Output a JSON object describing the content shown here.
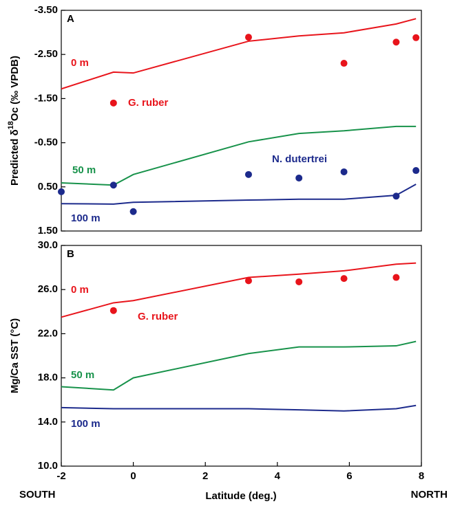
{
  "chart_data": [
    {
      "type": "line",
      "panel_label": "A",
      "ylabel": [
        "Predicted δ",
        "18",
        "Oc (‰ VPDB)"
      ],
      "xlim": [
        -2,
        8
      ],
      "ylim": [
        -3.5,
        1.5
      ],
      "invert_y": true,
      "yticks": [
        {
          "value": -3.5,
          "label": "-3.50"
        },
        {
          "value": -2.5,
          "label": "-2.50"
        },
        {
          "value": -1.5,
          "label": "-1.50"
        },
        {
          "value": -0.5,
          "label": "-0.50"
        },
        {
          "value": 0.5,
          "label": "0.50"
        },
        {
          "value": 1.5,
          "label": "1.50"
        }
      ],
      "series": [
        {
          "name": "0 m",
          "kind": "line",
          "color": "#e8141b",
          "x": [
            -2,
            -0.55,
            0,
            3.2,
            4.6,
            5.85,
            7.3,
            7.85
          ],
          "values": [
            -1.72,
            -2.1,
            -2.08,
            -2.8,
            -2.92,
            -2.99,
            -3.19,
            -3.31
          ]
        },
        {
          "name": "G. ruber",
          "kind": "scatter",
          "color": "#e8141b",
          "x": [
            -0.55,
            3.2,
            5.85,
            7.3,
            7.85
          ],
          "values": [
            -1.4,
            -2.89,
            -2.3,
            -2.78,
            -2.88
          ]
        },
        {
          "name": "50 m",
          "kind": "line",
          "color": "#17924a",
          "x": [
            -2,
            -0.55,
            0,
            3.2,
            4.6,
            5.85,
            7.3,
            7.85
          ],
          "values": [
            0.41,
            0.46,
            0.22,
            -0.52,
            -0.71,
            -0.77,
            -0.87,
            -0.87
          ]
        },
        {
          "name": "100 m",
          "kind": "line",
          "color": "#1c2a8c",
          "x": [
            -2,
            -0.55,
            0,
            3.2,
            4.6,
            5.85,
            7.3,
            7.85
          ],
          "values": [
            0.88,
            0.89,
            0.85,
            0.8,
            0.78,
            0.78,
            0.69,
            0.44
          ]
        },
        {
          "name": "N. dutertrei",
          "kind": "scatter",
          "color": "#1c2a8c",
          "x": [
            -2,
            -0.55,
            0,
            3.2,
            4.6,
            5.85,
            7.3,
            7.85
          ],
          "values": [
            0.61,
            0.46,
            1.06,
            0.22,
            0.3,
            0.16,
            0.71,
            0.13
          ]
        }
      ]
    },
    {
      "type": "line",
      "panel_label": "B",
      "ylabel": [
        "Mg/Ca SST (°C)"
      ],
      "xlabel": "Latitude (deg.)",
      "xlabel_left": "SOUTH",
      "xlabel_right": "NORTH",
      "xlim": [
        -2,
        8
      ],
      "xticks": [
        -2,
        0,
        2,
        4,
        6,
        8
      ],
      "ylim": [
        10,
        30
      ],
      "invert_y": false,
      "yticks": [
        {
          "value": 10,
          "label": "10.0"
        },
        {
          "value": 14,
          "label": "14.0"
        },
        {
          "value": 18,
          "label": "18.0"
        },
        {
          "value": 22,
          "label": "22.0"
        },
        {
          "value": 26,
          "label": "26.0"
        },
        {
          "value": 30,
          "label": "30.0"
        }
      ],
      "series": [
        {
          "name": "0 m",
          "kind": "line",
          "color": "#e8141b",
          "x": [
            -2,
            -0.55,
            0,
            3.2,
            4.6,
            5.85,
            7.3,
            7.85
          ],
          "values": [
            23.5,
            24.8,
            25.0,
            27.1,
            27.4,
            27.7,
            28.3,
            28.4
          ]
        },
        {
          "name": "G. ruber",
          "kind": "scatter",
          "color": "#e8141b",
          "x": [
            -0.55,
            3.2,
            4.6,
            5.85,
            7.3
          ],
          "values": [
            24.1,
            26.8,
            26.7,
            27.0,
            27.1
          ]
        },
        {
          "name": "50 m",
          "kind": "line",
          "color": "#17924a",
          "x": [
            -2,
            -0.55,
            0,
            3.2,
            4.6,
            5.85,
            7.3,
            7.85
          ],
          "values": [
            17.2,
            16.9,
            18.0,
            20.2,
            20.8,
            20.8,
            20.9,
            21.3
          ]
        },
        {
          "name": "100 m",
          "kind": "line",
          "color": "#1c2a8c",
          "x": [
            -2,
            -0.55,
            0,
            3.2,
            4.6,
            5.85,
            7.3,
            7.85
          ],
          "values": [
            15.3,
            15.2,
            15.2,
            15.2,
            15.1,
            15.0,
            15.2,
            15.5
          ]
        }
      ]
    }
  ]
}
